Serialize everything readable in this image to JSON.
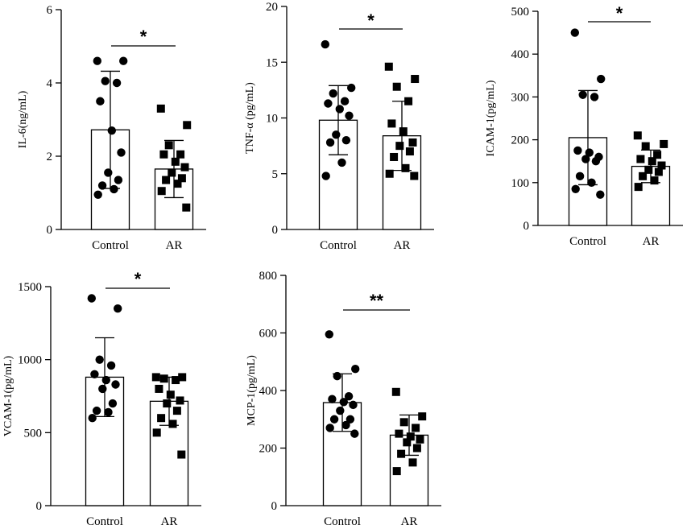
{
  "chart_data": [
    {
      "type": "bar",
      "ylabel": "IL-6(ng/mL)",
      "ylim": [
        0,
        6
      ],
      "yticks": [
        0,
        2,
        4,
        6
      ],
      "categories": [
        "Control",
        "AR"
      ],
      "means": [
        2.72,
        1.65
      ],
      "sd": [
        1.6,
        0.78
      ],
      "points": [
        [
          4.6,
          4.6,
          4.05,
          4.0,
          3.5,
          2.7,
          2.1,
          1.55,
          1.35,
          1.2,
          1.1,
          0.95
        ],
        [
          3.3,
          2.85,
          2.3,
          2.05,
          2.05,
          1.85,
          1.7,
          1.55,
          1.4,
          1.35,
          1.25,
          1.05,
          0.6
        ]
      ],
      "markers": [
        "circle",
        "square"
      ],
      "significance": "*"
    },
    {
      "type": "bar",
      "ylabel": "TNF-α (pg/mL)",
      "ylim": [
        0,
        20
      ],
      "yticks": [
        0,
        5,
        10,
        15,
        20
      ],
      "categories": [
        "Control",
        "AR"
      ],
      "means": [
        9.8,
        8.4
      ],
      "sd": [
        3.1,
        3.1
      ],
      "points": [
        [
          16.6,
          12.7,
          12.2,
          11.5,
          11.3,
          10.8,
          10.2,
          8.5,
          8.0,
          7.8,
          6.0,
          4.8
        ],
        [
          14.6,
          13.5,
          12.8,
          11.5,
          9.5,
          8.8,
          7.8,
          7.5,
          7.0,
          6.5,
          5.5,
          5.0,
          4.8
        ]
      ],
      "markers": [
        "circle",
        "square"
      ],
      "significance": "*"
    },
    {
      "type": "bar",
      "ylabel": "ICAM-1(pg/mL)",
      "ylim": [
        0,
        500
      ],
      "yticks": [
        0,
        100,
        200,
        300,
        400,
        500
      ],
      "categories": [
        "Control",
        "AR"
      ],
      "means": [
        205,
        138
      ],
      "sd": [
        110,
        38
      ],
      "points": [
        [
          450,
          342,
          305,
          300,
          175,
          170,
          160,
          155,
          150,
          115,
          100,
          85,
          72
        ],
        [
          210,
          190,
          185,
          165,
          155,
          150,
          140,
          130,
          125,
          115,
          105,
          90
        ]
      ],
      "markers": [
        "circle",
        "square"
      ],
      "significance": "*"
    },
    {
      "type": "bar",
      "ylabel": "VCAM-1(pg/mL)",
      "ylim": [
        0,
        1500
      ],
      "yticks": [
        0,
        500,
        1000,
        1500
      ],
      "categories": [
        "Control",
        "AR"
      ],
      "means": [
        880,
        715
      ],
      "sd": [
        270,
        165
      ],
      "points": [
        [
          1420,
          1350,
          1000,
          960,
          900,
          860,
          830,
          800,
          700,
          650,
          640,
          600
        ],
        [
          880,
          880,
          870,
          860,
          800,
          760,
          720,
          700,
          650,
          600,
          560,
          500,
          350
        ]
      ],
      "markers": [
        "circle",
        "square"
      ],
      "significance": "*"
    },
    {
      "type": "bar",
      "ylabel": "MCP-1(pg/mL)",
      "ylim": [
        0,
        800
      ],
      "yticks": [
        0,
        200,
        400,
        600,
        800
      ],
      "categories": [
        "Control",
        "AR"
      ],
      "means": [
        358,
        245
      ],
      "sd": [
        100,
        70
      ],
      "points": [
        [
          595,
          475,
          450,
          380,
          370,
          360,
          350,
          330,
          300,
          300,
          280,
          270,
          250
        ],
        [
          395,
          310,
          290,
          270,
          250,
          240,
          230,
          220,
          200,
          180,
          150,
          120
        ]
      ],
      "markers": [
        "circle",
        "square"
      ],
      "significance": "**"
    }
  ]
}
